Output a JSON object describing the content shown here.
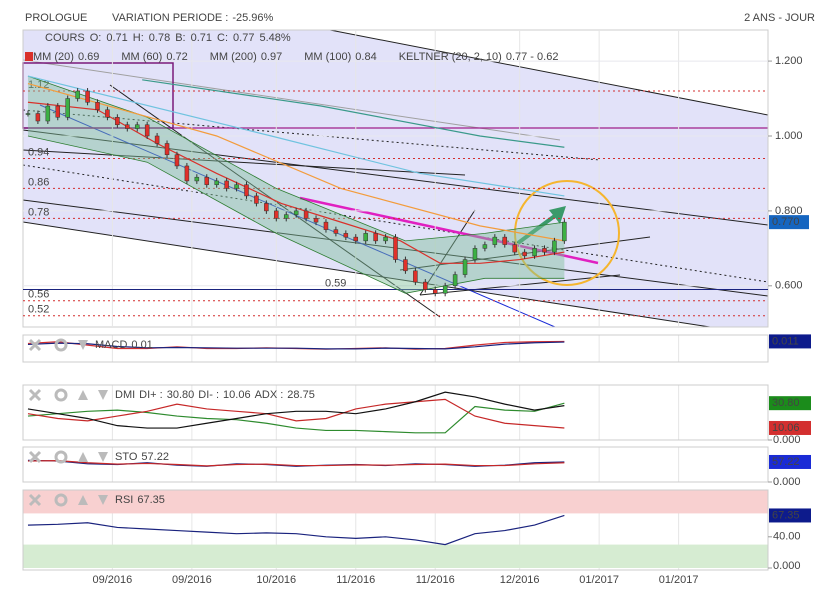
{
  "chart_data": {
    "type": "candlestick",
    "title": "PROLOGUE",
    "variation": {
      "label": "VARIATION PERIODE :",
      "value": -25.96,
      "value_label": "-25.96%"
    },
    "period": "2 ANS - JOUR",
    "quote": {
      "name": "COURS",
      "items": [
        {
          "label": "O:",
          "value": 0.71
        },
        {
          "label": "H:",
          "value": 0.78
        },
        {
          "label": "B:",
          "value": 0.71
        },
        {
          "label": "C:",
          "value": 0.77
        }
      ],
      "change": 5.48,
      "change_label": "5.48%"
    },
    "xlim": [
      0,
      150
    ],
    "xticks": [
      {
        "value": 18,
        "label": "09/2016"
      },
      {
        "value": 34,
        "label": "09/2016"
      },
      {
        "value": 51,
        "label": "10/2016"
      },
      {
        "value": 67,
        "label": "11/2016"
      },
      {
        "value": 83,
        "label": "11/2016"
      },
      {
        "value": 100,
        "label": "12/2016"
      },
      {
        "value": 116,
        "label": "01/2017"
      },
      {
        "value": 132,
        "label": "01/2017"
      }
    ],
    "ylim": [
      0.49,
      1.283
    ],
    "yticks": [
      {
        "value": 1.2,
        "label": "1.200"
      },
      {
        "value": 1.0,
        "label": "1.000"
      },
      {
        "value": 0.8,
        "label": "0.800"
      },
      {
        "value": 0.6,
        "label": "0.600"
      }
    ],
    "last_price": {
      "value": 0.77,
      "label": "0.770"
    },
    "up_color": "#3cb043",
    "down_color": "#e0302a",
    "x": [
      1,
      3,
      5,
      7,
      9,
      11,
      13,
      15,
      17,
      19,
      21,
      23,
      25,
      27,
      29,
      31,
      33,
      35,
      37,
      39,
      41,
      43,
      45,
      47,
      49,
      51,
      53,
      55,
      57,
      59,
      61,
      63,
      65,
      67,
      69,
      71,
      73,
      75,
      77,
      79,
      81,
      83,
      85,
      87,
      89,
      91,
      93,
      95,
      97,
      99,
      101,
      103,
      105,
      107,
      109
    ],
    "close": [
      1.06,
      1.04,
      1.08,
      1.05,
      1.1,
      1.12,
      1.09,
      1.07,
      1.05,
      1.03,
      1.02,
      1.03,
      1.0,
      0.98,
      0.95,
      0.92,
      0.88,
      0.89,
      0.87,
      0.88,
      0.86,
      0.87,
      0.84,
      0.82,
      0.8,
      0.78,
      0.79,
      0.8,
      0.78,
      0.77,
      0.75,
      0.74,
      0.73,
      0.72,
      0.74,
      0.72,
      0.73,
      0.67,
      0.64,
      0.61,
      0.59,
      0.58,
      0.6,
      0.63,
      0.67,
      0.7,
      0.71,
      0.73,
      0.71,
      0.69,
      0.68,
      0.7,
      0.69,
      0.72,
      0.77
    ],
    "levels": [
      {
        "value": 1.12,
        "color": "#d32f2f"
      },
      {
        "value": 0.94,
        "color": "#d32f2f"
      },
      {
        "value": 0.86,
        "color": "#d32f2f"
      },
      {
        "value": 0.78,
        "color": "#d32f2f"
      },
      {
        "value": 0.59,
        "color": "#1a237e"
      },
      {
        "value": 0.56,
        "color": "#d32f2f"
      },
      {
        "value": 0.52,
        "color": "#d32f2f"
      }
    ],
    "overlays": [
      {
        "name": "MM (20)",
        "value": 0.69,
        "color": "#d9302a",
        "x": [
          1,
          15,
          27,
          39,
          52,
          64,
          76,
          84,
          92,
          100,
          109
        ],
        "values": [
          1.09,
          1.07,
          0.98,
          0.9,
          0.82,
          0.77,
          0.72,
          0.66,
          0.66,
          0.67,
          0.69
        ]
      },
      {
        "name": "MM (60)",
        "value": 0.72,
        "color": "#f39c3c",
        "x": [
          1,
          39,
          64,
          92,
          109
        ],
        "values": [
          1.14,
          1.0,
          0.86,
          0.76,
          0.72
        ]
      },
      {
        "name": "MM (200)",
        "value": 0.97,
        "color": "#3a9a8a",
        "x": [
          24,
          60,
          92,
          109
        ],
        "values": [
          1.15,
          1.08,
          1.0,
          0.97
        ]
      },
      {
        "name": "MM (100)",
        "value": 0.84,
        "color": "#6fc3df",
        "x": [
          1,
          50,
          80,
          109
        ],
        "values": [
          1.16,
          1.0,
          0.9,
          0.84
        ]
      }
    ],
    "keltner": {
      "name": "KELTNER (20, 2, 10)",
      "value_label": "0.77 - 0.62",
      "color": "#2e7d32",
      "x": [
        1,
        25,
        51,
        77,
        93,
        109
      ],
      "upper": [
        1.16,
        1.05,
        0.86,
        0.72,
        0.74,
        0.77
      ],
      "lower": [
        1.0,
        0.93,
        0.74,
        0.58,
        0.62,
        0.62
      ]
    },
    "panels": [
      {
        "title": "MACD",
        "legend": [
          {
            "value": 0.01
          }
        ],
        "ylim": [
          -0.05,
          0.03
        ],
        "yticks": [],
        "x": [
          1,
          7,
          13,
          19,
          25,
          31,
          37,
          43,
          49,
          55,
          61,
          67,
          73,
          79,
          85,
          91,
          97,
          103,
          109
        ],
        "series": [
          {
            "color": "#d32f2f",
            "values": [
              0.005,
              0.01,
              0.0,
              -0.01,
              -0.01,
              -0.005,
              -0.01,
              -0.01,
              -0.008,
              -0.01,
              -0.012,
              -0.01,
              -0.008,
              -0.012,
              -0.01,
              0.0,
              0.008,
              0.01,
              0.011
            ]
          },
          {
            "color": "#1a237e",
            "values": [
              0.002,
              0.006,
              0.004,
              -0.004,
              -0.008,
              -0.007,
              -0.008,
              -0.009,
              -0.009,
              -0.009,
              -0.011,
              -0.011,
              -0.009,
              -0.01,
              -0.011,
              -0.005,
              0.003,
              0.007,
              0.009
            ]
          }
        ],
        "value_boxes": [
          {
            "value": 0.011,
            "color": "#0d1b8c"
          }
        ]
      },
      {
        "title": "DMI",
        "legend": [
          {
            "label": "DI+ :",
            "value": 30.8,
            "value_label": "30.80"
          },
          {
            "label": "DI- :",
            "value": 10.06,
            "value_label": "10.06"
          },
          {
            "label": "ADX :",
            "value": 28.75,
            "value_label": "28.75"
          }
        ],
        "ylim": [
          0,
          46
        ],
        "yticks": [
          {
            "value": 0,
            "label": "0.000"
          }
        ],
        "x": [
          1,
          7,
          13,
          19,
          25,
          31,
          37,
          43,
          49,
          55,
          61,
          67,
          73,
          79,
          85,
          91,
          97,
          103,
          109
        ],
        "series": [
          {
            "color": "#2e8b2e",
            "values": [
              20,
              22,
              24,
              25,
              23,
              20,
              18,
              17,
              14,
              10,
              8,
              8,
              7,
              6,
              6,
              28,
              25,
              24,
              30.8
            ]
          },
          {
            "color": "#c62828",
            "values": [
              22,
              18,
              16,
              20,
              24,
              30,
              26,
              24,
              22,
              16,
              18,
              26,
              30,
              32,
              34,
              20,
              14,
              12,
              10.06
            ]
          },
          {
            "color": "#111111",
            "values": [
              26,
              22,
              18,
              12,
              10,
              10,
              14,
              18,
              22,
              24,
              24,
              22,
              26,
              32,
              40,
              36,
              30,
              25,
              28.75
            ]
          }
        ],
        "value_boxes": [
          {
            "value": 30.8,
            "label": "30.80",
            "color": "#1b8c1b"
          },
          {
            "value": 10.06,
            "label": "10.06",
            "color": "#d32f2f"
          }
        ]
      },
      {
        "title": "STO",
        "legend": [
          {
            "value": 57.22
          }
        ],
        "ylim": [
          0,
          100
        ],
        "yticks": [
          {
            "value": 0,
            "label": "0.000"
          }
        ],
        "x": [
          1,
          7,
          13,
          19,
          25,
          31,
          37,
          43,
          49,
          55,
          61,
          67,
          73,
          79,
          85,
          91,
          97,
          103,
          109
        ],
        "series": [
          {
            "color": "#1a237e",
            "values": [
              62,
              60,
              52,
              50,
              55,
              48,
              45,
              52,
              50,
              45,
              48,
              50,
              47,
              52,
              50,
              45,
              48,
              55,
              57.22
            ]
          },
          {
            "color": "#c62828",
            "values": [
              60,
              61,
              55,
              51,
              53,
              50,
              46,
              50,
              51,
              47,
              47,
              49,
              48,
              50,
              51,
              47,
              47,
              52,
              55
            ]
          }
        ],
        "value_boxes": [
          {
            "value": 57.22,
            "color": "#1a2bd6"
          }
        ]
      },
      {
        "title": "RSI",
        "legend": [
          {
            "value": 67.35
          }
        ],
        "ylim": [
          0,
          100
        ],
        "yticks": [
          {
            "value": 40,
            "label": "40.00"
          },
          {
            "value": 0,
            "label": "0.000"
          }
        ],
        "zones": [
          {
            "from": 70,
            "to": 100,
            "color": "#f8d0d0"
          },
          {
            "from": 0,
            "to": 30,
            "color": "#d6ecd2"
          }
        ],
        "x": [
          1,
          7,
          13,
          19,
          25,
          31,
          37,
          43,
          49,
          55,
          61,
          67,
          73,
          79,
          85,
          91,
          97,
          103,
          109
        ],
        "series": [
          {
            "color": "#1a237e",
            "values": [
              55,
              56,
              58,
              52,
              50,
              48,
              46,
              44,
              45,
              44,
              40,
              38,
              40,
              36,
              30,
              44,
              48,
              55,
              67.35
            ]
          }
        ],
        "value_boxes": [
          {
            "value": 67.35,
            "color": "#0d1b8c"
          }
        ]
      }
    ]
  }
}
